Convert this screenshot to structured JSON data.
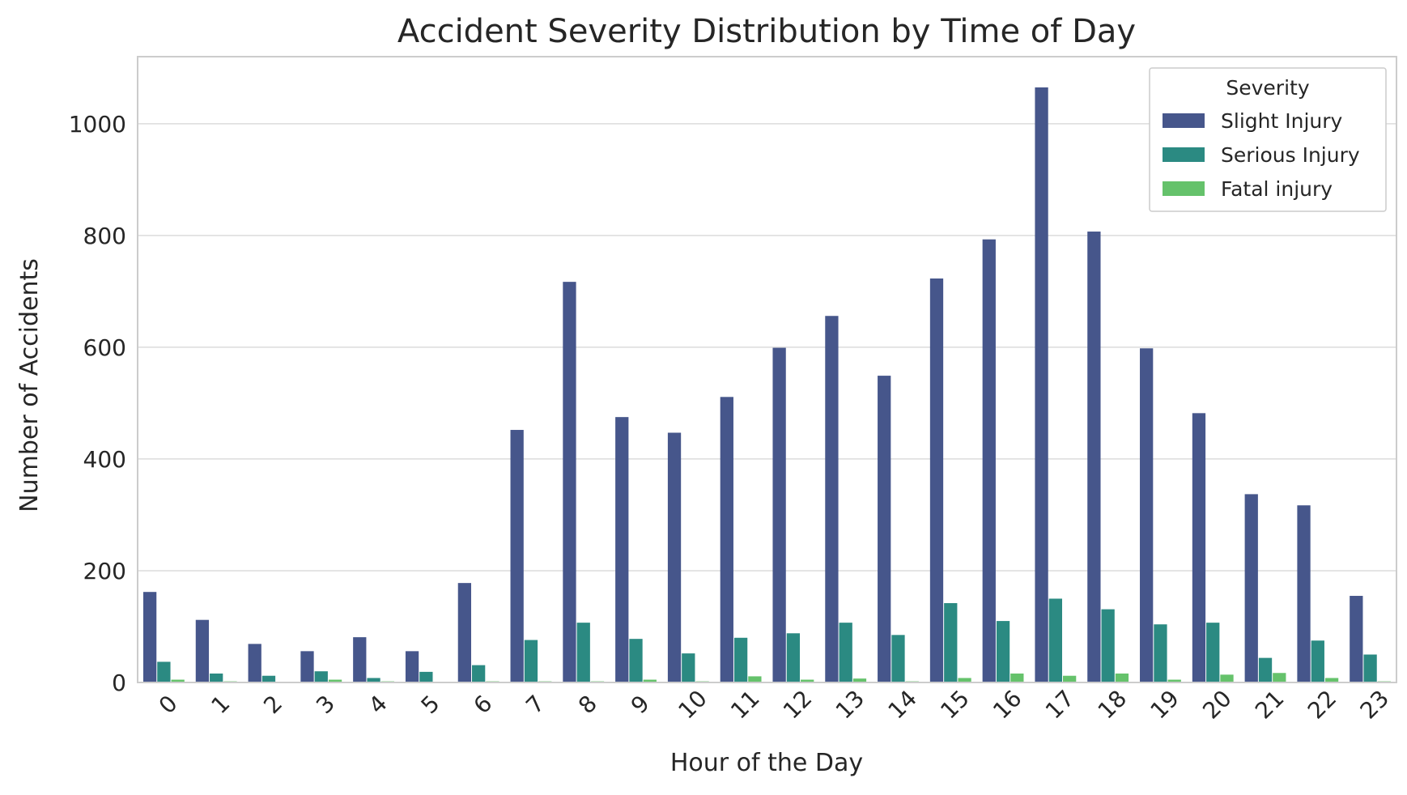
{
  "chart_data": {
    "type": "bar",
    "title": "Accident Severity Distribution by Time of Day",
    "xlabel": "Hour of the Day",
    "ylabel": "Number of Accidents",
    "categories": [
      "0",
      "1",
      "2",
      "3",
      "4",
      "5",
      "6",
      "7",
      "8",
      "9",
      "10",
      "11",
      "12",
      "13",
      "14",
      "15",
      "16",
      "17",
      "18",
      "19",
      "20",
      "21",
      "22",
      "23"
    ],
    "ylim": [
      0,
      1120
    ],
    "yticks": [
      0,
      200,
      400,
      600,
      800,
      1000
    ],
    "grid": "horizontal",
    "legend": {
      "title": "Severity",
      "placement": "top-right"
    },
    "series": [
      {
        "name": "Slight Injury",
        "color": "#46568b",
        "values": [
          162,
          112,
          69,
          56,
          81,
          56,
          178,
          452,
          717,
          475,
          447,
          511,
          599,
          656,
          549,
          723,
          793,
          1065,
          807,
          598,
          482,
          337,
          317,
          155
        ]
      },
      {
        "name": "Serious Injury",
        "color": "#2b8a82",
        "values": [
          37,
          16,
          12,
          20,
          8,
          19,
          31,
          76,
          107,
          78,
          52,
          80,
          88,
          107,
          85,
          142,
          110,
          150,
          131,
          104,
          107,
          44,
          75,
          50
        ]
      },
      {
        "name": "Fatal injury",
        "color": "#65c26b",
        "values": [
          5,
          2,
          1,
          5,
          2,
          1,
          2,
          2,
          2,
          5,
          2,
          11,
          5,
          7,
          2,
          8,
          16,
          12,
          16,
          5,
          14,
          17,
          8,
          2
        ]
      }
    ]
  }
}
